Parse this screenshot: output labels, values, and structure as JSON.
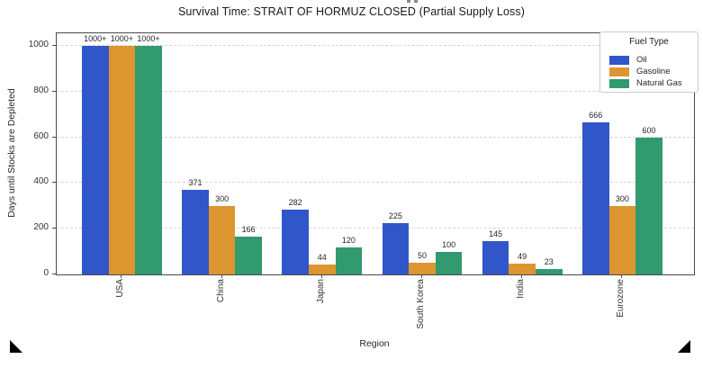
{
  "figure": {
    "title": "Survival Time: STRAIT OF HORMUZ CLOSED (Partial Supply Loss)"
  },
  "chart_data": {
    "type": "bar",
    "title": "Survival Time: STRAIT OF HORMUZ CLOSED (Partial Supply Loss)",
    "xlabel": "Region",
    "ylabel": "Days until Stocks are Depleted",
    "categories": [
      "USA",
      "China",
      "Japan",
      "South Korea",
      "India",
      "Eurozone"
    ],
    "series": [
      {
        "name": "Oil",
        "color": "#3156c9",
        "values": [
          1000,
          371,
          282,
          225,
          145,
          666
        ],
        "value_labels": [
          "1000+",
          "371",
          "282",
          "225",
          "145",
          "666"
        ]
      },
      {
        "name": "Gasoline",
        "color": "#dd9530",
        "values": [
          1000,
          300,
          44,
          50,
          49,
          300
        ],
        "value_labels": [
          "1000+",
          "300",
          "44",
          "50",
          "49",
          "300"
        ]
      },
      {
        "name": "Natural Gas",
        "color": "#319a6e",
        "values": [
          1000,
          166,
          120,
          100,
          23,
          600
        ],
        "value_labels": [
          "1000+",
          "166",
          "120",
          "100",
          "23",
          "600"
        ]
      }
    ],
    "yticks": [
      0,
      200,
      400,
      600,
      800,
      1000
    ],
    "ylim": [
      0,
      1055
    ],
    "grid": "horizontal-dashed",
    "legend": {
      "title": "Fuel Type",
      "position": "upper-right"
    }
  }
}
